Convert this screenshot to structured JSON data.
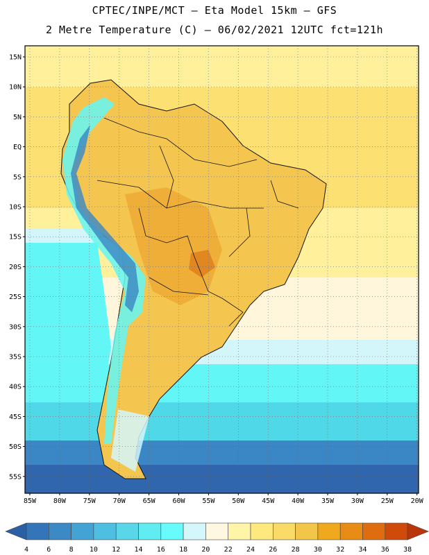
{
  "header": {
    "line1": "CPTEC/INPE/MCT –  Eta Model 15km – GFS",
    "line2": "2 Metre Temperature (C) – 06/02/2021 12UTC fct=121h"
  },
  "map": {
    "lat_labels": [
      "15N",
      "10N",
      "5N",
      "EQ",
      "5S",
      "10S",
      "15S",
      "20S",
      "25S",
      "30S",
      "35S",
      "40S",
      "45S",
      "50S",
      "55S"
    ],
    "lon_labels": [
      "85W",
      "80W",
      "75W",
      "70W",
      "65W",
      "60W",
      "55W",
      "50W",
      "45W",
      "40W",
      "35W",
      "30W",
      "25W",
      "20W"
    ],
    "colors": {
      "deep_blue": "#2f66ad",
      "blue": "#3b86c4",
      "cyan": "#4fd8e8",
      "aqua": "#63f6f6",
      "pale_cyan": "#d3f6fb",
      "cream": "#fff6dc",
      "light_yellow": "#fff09c",
      "yellow": "#fde072",
      "gold": "#f4c650",
      "orange": "#eea530"
    }
  },
  "legend": {
    "ticks": [
      "4",
      "6",
      "8",
      "10",
      "12",
      "14",
      "16",
      "18",
      "20",
      "22",
      "24",
      "26",
      "28",
      "30",
      "32",
      "34",
      "36",
      "38"
    ],
    "colors": [
      "#2b5fa6",
      "#3375b8",
      "#3b8ac6",
      "#43a3d4",
      "#4ebfe0",
      "#59d7e8",
      "#60ecf1",
      "#67fbfb",
      "#d4f7fb",
      "#fff8e1",
      "#fff5a8",
      "#ffe97f",
      "#fadb68",
      "#f2c648",
      "#f0a91c",
      "#e88c16",
      "#e06c10",
      "#cf4a0b",
      "#b8360a"
    ]
  }
}
